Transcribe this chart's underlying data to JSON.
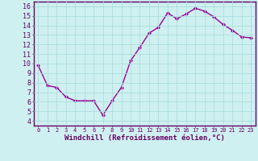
{
  "x": [
    0,
    1,
    2,
    3,
    4,
    5,
    6,
    7,
    8,
    9,
    10,
    11,
    12,
    13,
    14,
    15,
    16,
    17,
    18,
    19,
    20,
    21,
    22,
    23
  ],
  "y": [
    9.8,
    7.7,
    7.5,
    6.5,
    6.1,
    6.1,
    6.1,
    4.6,
    6.1,
    7.5,
    10.3,
    11.7,
    13.2,
    13.8,
    15.3,
    14.7,
    15.2,
    15.8,
    15.5,
    14.9,
    14.1,
    13.5,
    12.8,
    12.7
  ],
  "line_color": "#990099",
  "marker": "D",
  "markersize": 2,
  "linewidth": 1,
  "bg_color": "#cff0f0",
  "grid_color": "#aadddd",
  "axis_color": "#660066",
  "xlabel": "Windchill (Refroidissement éolien,°C)",
  "xlabel_fontsize": 6.5,
  "ytick_labels": [
    "4",
    "5",
    "6",
    "7",
    "8",
    "9",
    "10",
    "11",
    "12",
    "13",
    "14",
    "15",
    "16"
  ],
  "ylim": [
    3.5,
    16.5
  ],
  "xlim": [
    -0.5,
    23.5
  ],
  "xtick_labels": [
    "0",
    "1",
    "2",
    "3",
    "4",
    "5",
    "6",
    "7",
    "8",
    "9",
    "10",
    "11",
    "12",
    "13",
    "14",
    "15",
    "16",
    "17",
    "18",
    "19",
    "20",
    "21",
    "22",
    "23"
  ],
  "xtick_fontsize": 5.0,
  "ytick_fontsize": 6.0
}
